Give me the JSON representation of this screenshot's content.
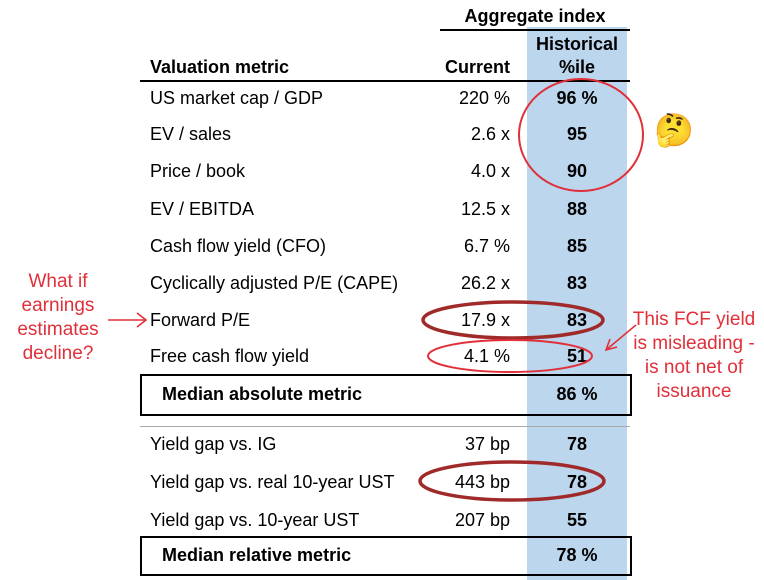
{
  "header": {
    "group_label": "Aggregate index",
    "col_metric": "Valuation metric",
    "col_current": "Current",
    "col_historical": "Historical\n%ile"
  },
  "absolute_rows": [
    {
      "metric": "US market cap / GDP",
      "current": "220 %",
      "percentile": "96 %"
    },
    {
      "metric": "EV / sales",
      "current": "2.6 x",
      "percentile": "95"
    },
    {
      "metric": "Price / book",
      "current": "4.0 x",
      "percentile": "90"
    },
    {
      "metric": "EV / EBITDA",
      "current": "12.5 x",
      "percentile": "88"
    },
    {
      "metric": "Cash flow yield (CFO)",
      "current": "6.7 %",
      "percentile": "85"
    },
    {
      "metric": "Cyclically adjusted P/E (CAPE)",
      "current": "26.2 x",
      "percentile": "83"
    },
    {
      "metric": "Forward P/E",
      "current": "17.9 x",
      "percentile": "83"
    },
    {
      "metric": "Free cash flow yield",
      "current": "4.1 %",
      "percentile": "51"
    }
  ],
  "absolute_median": {
    "label": "Median absolute metric",
    "percentile": "86 %"
  },
  "relative_rows": [
    {
      "metric": "Yield gap vs. IG",
      "current": "37 bp",
      "percentile": "78"
    },
    {
      "metric": "Yield gap vs. real 10-year UST",
      "current": "443 bp",
      "percentile": "78"
    },
    {
      "metric": "Yield gap vs. 10-year UST",
      "current": "207 bp",
      "percentile": "55"
    }
  ],
  "relative_median": {
    "label": "Median relative metric",
    "percentile": "78 %"
  },
  "annotations": {
    "left_note": "What if\nearnings\nestimates\ndecline?",
    "right_note": "This FCF yield\nis misleading -\nis not net of\nissuance",
    "emoji": "🤔"
  },
  "colors": {
    "highlight": "#bcd6ee",
    "annotation_red": "#e0303a",
    "ellipse_dark_red": "#a02a2a"
  }
}
